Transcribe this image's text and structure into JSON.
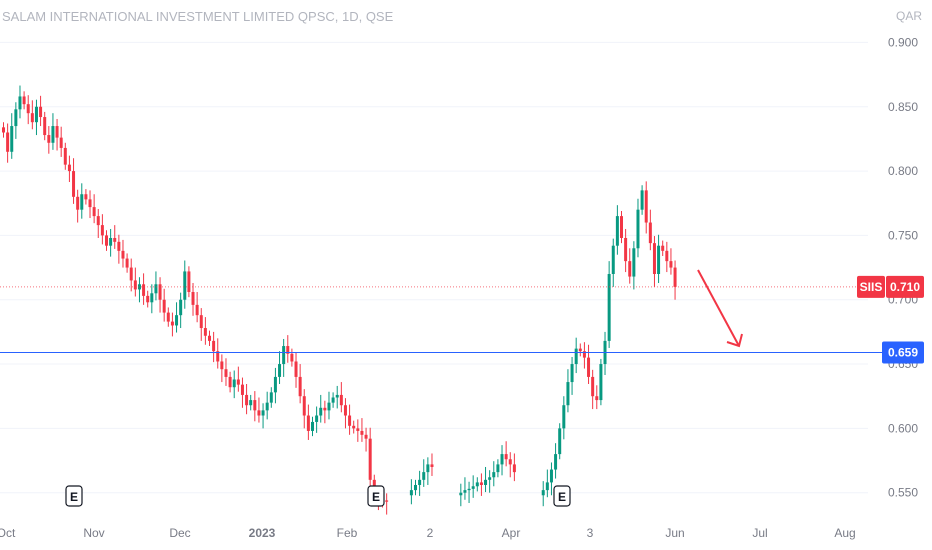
{
  "header": {
    "title": "SALAM INTERNATIONAL INVESTMENT LIMITED QPSC, 1D, QSE",
    "currency": "QAR"
  },
  "chart_data": {
    "type": "candlestick",
    "symbol": "SIIS",
    "timeframe": "1D",
    "exchange": "QSE",
    "ylim": [
      0.535,
      0.905
    ],
    "y_ticks": [
      "0.900",
      "0.850",
      "0.800",
      "0.750",
      "0.700",
      "0.650",
      "0.600",
      "0.550"
    ],
    "x_ticks": [
      "Oct",
      "Nov",
      "Dec",
      "2023",
      "Feb",
      "2",
      "Apr",
      "3",
      "Jun",
      "Jul",
      "Aug"
    ],
    "bold_x_ticks": [
      "2023"
    ],
    "last_price": {
      "label": "SIIS",
      "value": "0.710",
      "color": "#f23645"
    },
    "horizontal_line": {
      "value": "0.659",
      "color": "#2962ff"
    },
    "earnings_marks": [
      "E",
      "E",
      "E"
    ],
    "up_color": "#089981",
    "down_color": "#f23645",
    "closes": [
      0.83,
      0.815,
      0.835,
      0.848,
      0.858,
      0.852,
      0.845,
      0.838,
      0.85,
      0.842,
      0.828,
      0.822,
      0.835,
      0.826,
      0.818,
      0.805,
      0.8,
      0.78,
      0.77,
      0.782,
      0.778,
      0.772,
      0.765,
      0.758,
      0.75,
      0.742,
      0.748,
      0.745,
      0.738,
      0.732,
      0.725,
      0.715,
      0.708,
      0.712,
      0.703,
      0.698,
      0.705,
      0.712,
      0.7,
      0.69,
      0.683,
      0.68,
      0.688,
      0.7,
      0.722,
      0.706,
      0.696,
      0.688,
      0.678,
      0.672,
      0.668,
      0.66,
      0.652,
      0.646,
      0.64,
      0.632,
      0.638,
      0.634,
      0.626,
      0.618,
      0.622,
      0.614,
      0.61,
      0.614,
      0.62,
      0.628,
      0.64,
      0.65,
      0.664,
      0.658,
      0.652,
      0.64,
      0.625,
      0.61,
      0.598,
      0.605,
      0.61,
      0.616,
      0.614,
      0.62,
      0.624,
      0.626,
      0.618,
      0.61,
      0.602,
      0.6,
      0.598,
      0.595,
      0.592,
      0.56,
      0.548,
      0.545,
      0.544,
      0.543,
      0.542,
      0.545,
      0.548,
      0.55,
      0.548,
      0.552,
      0.556,
      0.56,
      0.566,
      0.572,
      0.57,
      0.56,
      0.553,
      0.55,
      0.548,
      0.547,
      0.548,
      0.55,
      0.552,
      0.553,
      0.555,
      0.558,
      0.556,
      0.56,
      0.562,
      0.566,
      0.572,
      0.58,
      0.576,
      0.572,
      0.566,
      0.56,
      0.556,
      0.55,
      0.548,
      0.545,
      0.548,
      0.552,
      0.558,
      0.568,
      0.58,
      0.6,
      0.618,
      0.636,
      0.65,
      0.662,
      0.66,
      0.655,
      0.64,
      0.625,
      0.622,
      0.65,
      0.668,
      0.72,
      0.742,
      0.765,
      0.748,
      0.73,
      0.718,
      0.74,
      0.77,
      0.785,
      0.76,
      0.744,
      0.72,
      0.742,
      0.738,
      0.73,
      0.725,
      0.71
    ]
  }
}
